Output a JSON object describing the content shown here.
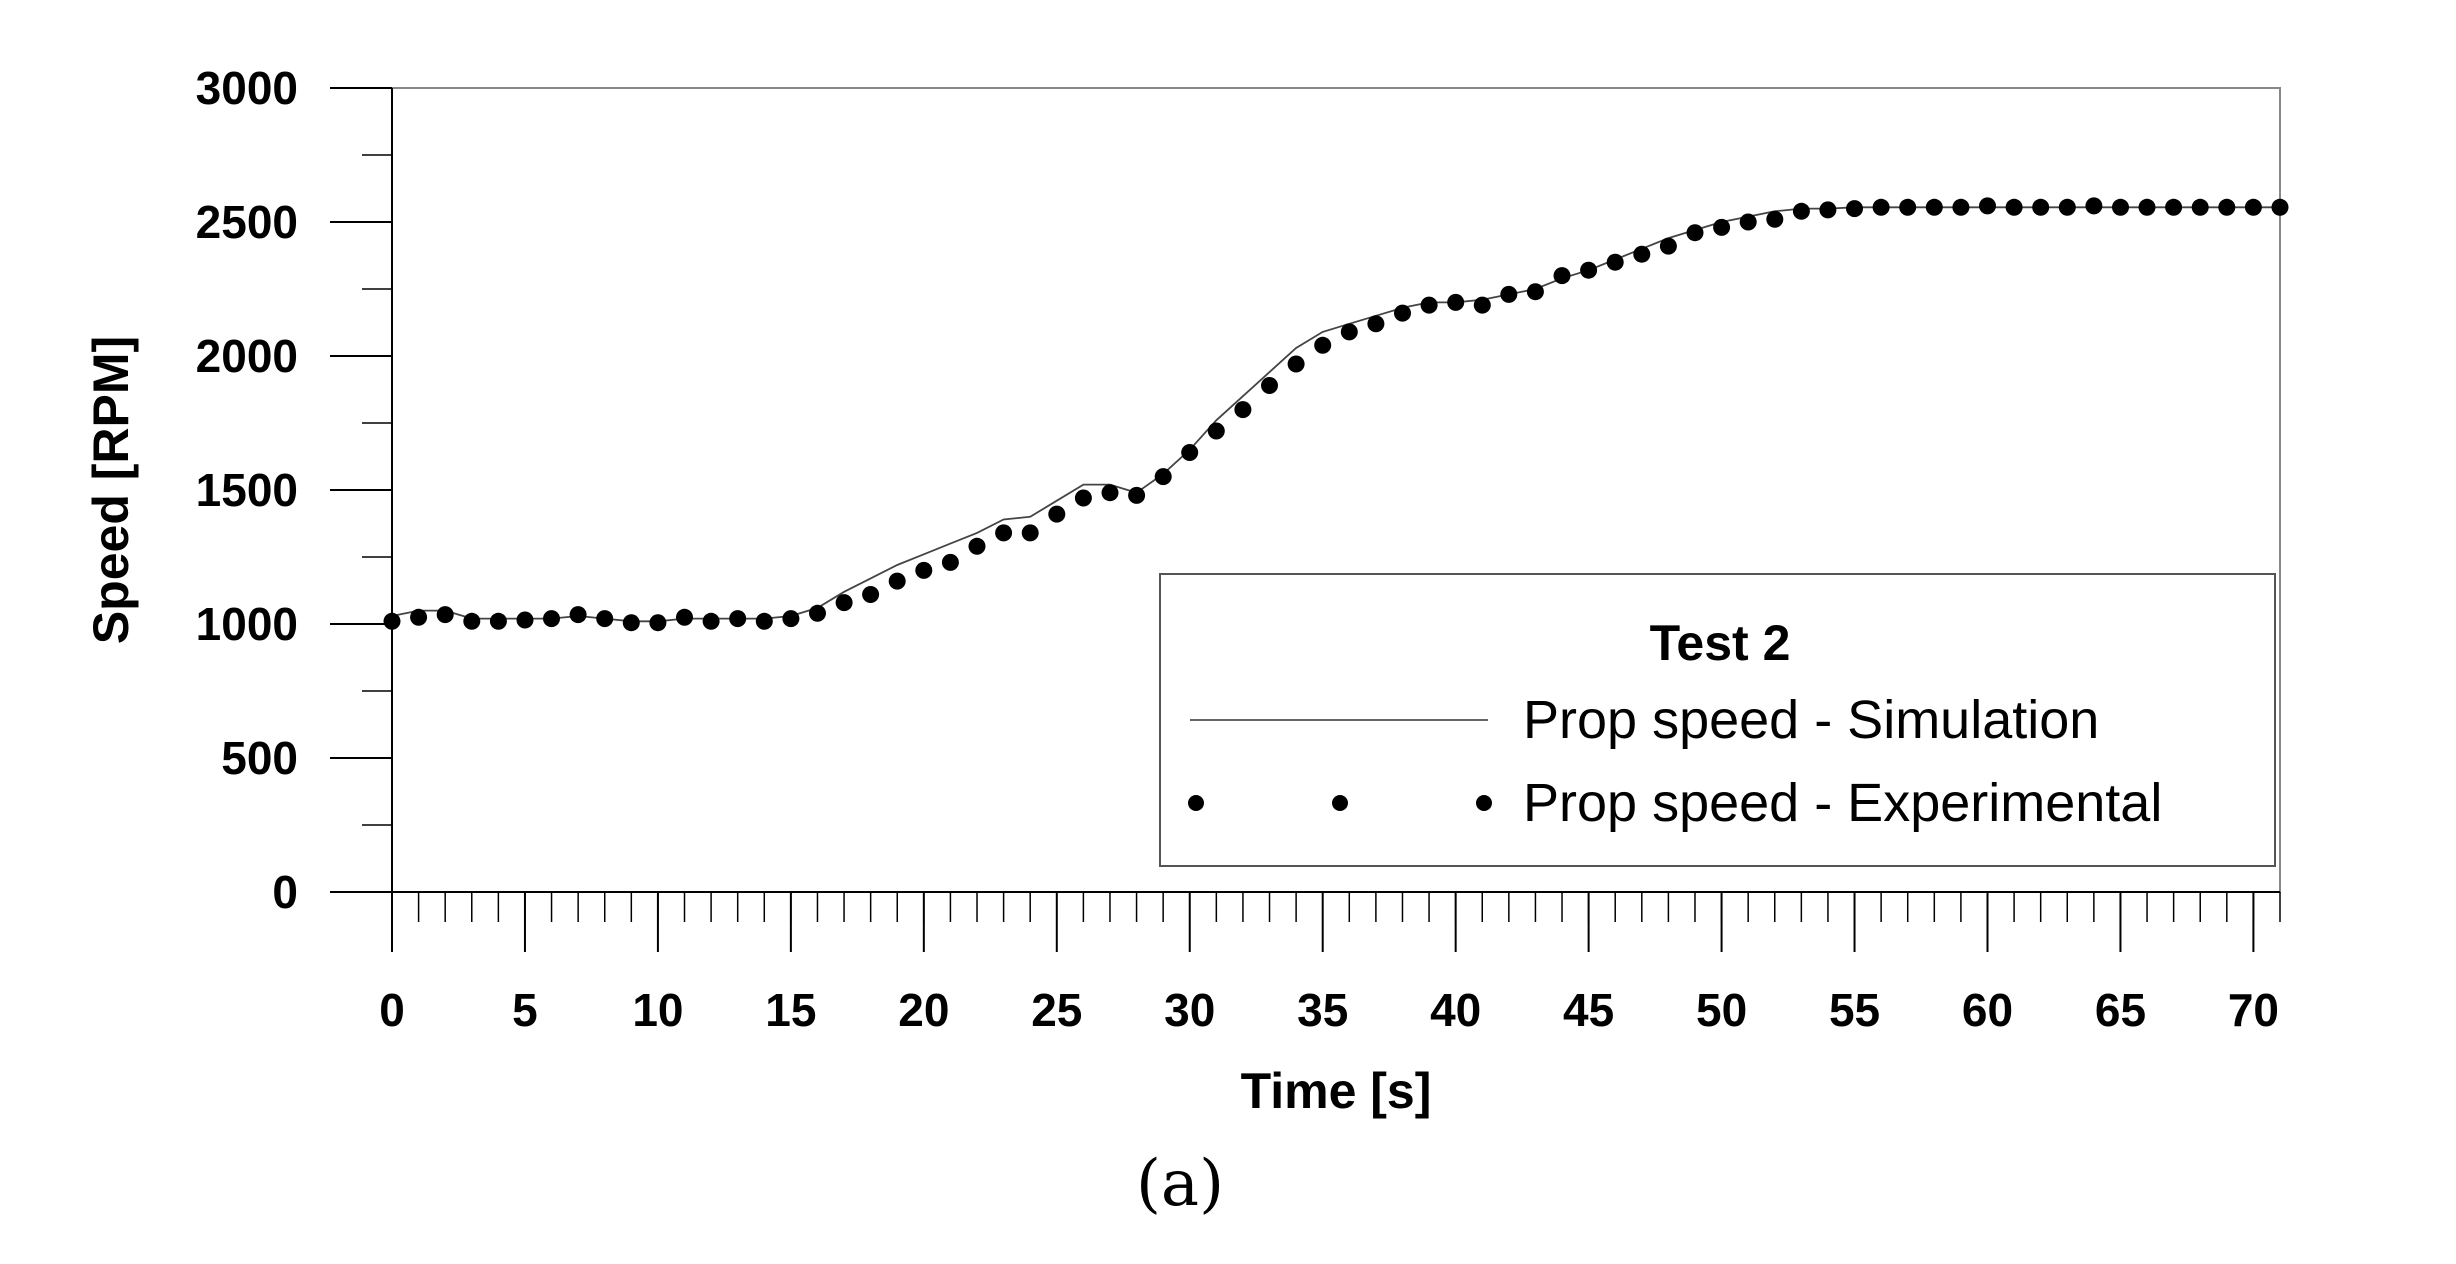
{
  "chart_data": {
    "type": "line",
    "title": "",
    "caption": "(a)",
    "xlabel": "Time [s]",
    "ylabel": "Speed [RPM]",
    "xlim": [
      0,
      71
    ],
    "ylim": [
      0,
      3000
    ],
    "x_ticks": [
      0,
      5,
      10,
      15,
      20,
      25,
      30,
      35,
      40,
      45,
      50,
      55,
      60,
      65,
      70
    ],
    "y_ticks": [
      0,
      500,
      1000,
      1500,
      2000,
      2500,
      3000
    ],
    "grid": false,
    "legend": {
      "title": "Test 2",
      "position": "bottom-right",
      "entries": [
        "Prop speed - Simulation",
        "Prop speed - Experimental"
      ]
    },
    "series": [
      {
        "name": "Prop speed - Simulation",
        "style": "line",
        "x": [
          0,
          1,
          2,
          3,
          4,
          5,
          6,
          7,
          8,
          9,
          10,
          11,
          12,
          13,
          14,
          15,
          16,
          17,
          18,
          19,
          20,
          21,
          22,
          23,
          24,
          25,
          26,
          27,
          28,
          29,
          30,
          31,
          32,
          33,
          34,
          35,
          36,
          37,
          38,
          39,
          40,
          41,
          42,
          43,
          44,
          45,
          46,
          47,
          48,
          49,
          50,
          51,
          52,
          53,
          54,
          55,
          56,
          57,
          58,
          59,
          60,
          61,
          62,
          63,
          64,
          65,
          66,
          67,
          68,
          69,
          70,
          71
        ],
        "values": [
          1030,
          1050,
          1050,
          1020,
          1020,
          1020,
          1020,
          1030,
          1020,
          1010,
          1010,
          1020,
          1020,
          1020,
          1020,
          1030,
          1060,
          1120,
          1170,
          1220,
          1260,
          1300,
          1340,
          1390,
          1400,
          1460,
          1520,
          1520,
          1490,
          1560,
          1650,
          1760,
          1850,
          1940,
          2030,
          2090,
          2120,
          2150,
          2180,
          2200,
          2200,
          2210,
          2230,
          2250,
          2290,
          2320,
          2360,
          2400,
          2440,
          2470,
          2500,
          2520,
          2540,
          2550,
          2550,
          2555,
          2555,
          2555,
          2555,
          2555,
          2555,
          2555,
          2555,
          2555,
          2555,
          2555,
          2555,
          2555,
          2555,
          2555,
          2555,
          2555
        ]
      },
      {
        "name": "Prop speed - Experimental",
        "style": "dots",
        "x": [
          0,
          1,
          2,
          3,
          4,
          5,
          6,
          7,
          8,
          9,
          10,
          11,
          12,
          13,
          14,
          15,
          16,
          17,
          18,
          19,
          20,
          21,
          22,
          23,
          24,
          25,
          26,
          27,
          28,
          29,
          30,
          31,
          32,
          33,
          34,
          35,
          36,
          37,
          38,
          39,
          40,
          41,
          42,
          43,
          44,
          45,
          46,
          47,
          48,
          49,
          50,
          51,
          52,
          53,
          54,
          55,
          56,
          57,
          58,
          59,
          60,
          61,
          62,
          63,
          64,
          65,
          66,
          67,
          68,
          69,
          70,
          71
        ],
        "values": [
          1010,
          1025,
          1035,
          1010,
          1010,
          1015,
          1020,
          1035,
          1020,
          1005,
          1005,
          1025,
          1010,
          1020,
          1010,
          1020,
          1040,
          1080,
          1110,
          1160,
          1200,
          1230,
          1290,
          1340,
          1340,
          1410,
          1470,
          1490,
          1480,
          1550,
          1640,
          1720,
          1800,
          1890,
          1970,
          2040,
          2090,
          2120,
          2160,
          2190,
          2200,
          2190,
          2230,
          2240,
          2300,
          2320,
          2350,
          2380,
          2410,
          2460,
          2480,
          2500,
          2510,
          2540,
          2545,
          2550,
          2555,
          2555,
          2555,
          2555,
          2560,
          2555,
          2555,
          2555,
          2560,
          2555,
          2555,
          2555,
          2555,
          2555,
          2555,
          2555
        ]
      }
    ]
  }
}
